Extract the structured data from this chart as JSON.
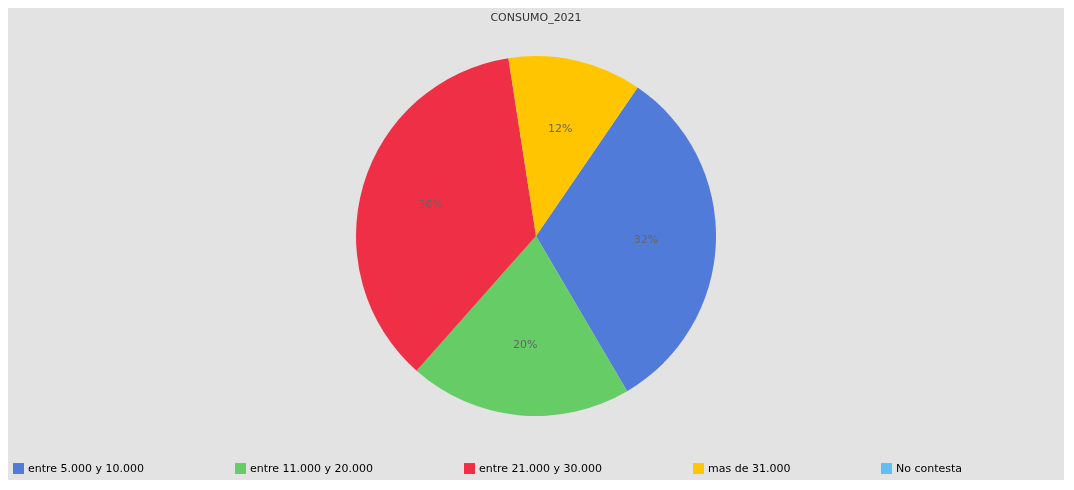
{
  "chart_data": {
    "type": "pie",
    "title": "CONSUMO_2021",
    "categories": [
      "entre 5.000 y 10.000",
      "entre 11.000 y 20.000",
      "entre 21.000 y 30.000",
      "mas de 31.000",
      "No contesta"
    ],
    "values": [
      32,
      20,
      36,
      12,
      0
    ],
    "colors": [
      "#517bd9",
      "#66cc66",
      "#ef2f45",
      "#ffc600",
      "#5fbff5"
    ],
    "value_labels": [
      "32%",
      "20%",
      "36%",
      "12%",
      null
    ],
    "legend": "bottom"
  }
}
